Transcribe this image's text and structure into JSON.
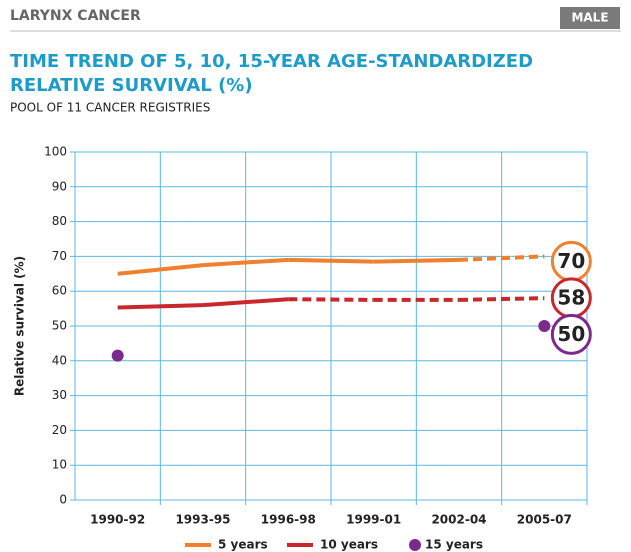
{
  "header": {
    "section": "LARYNX CANCER",
    "sex": "MALE"
  },
  "chart_data": {
    "type": "line",
    "title_lines": [
      "TIME TREND OF 5, 10, 15-YEAR AGE-STANDARDIZED",
      "RELATIVE SURVIVAL (%)"
    ],
    "subtitle": "POOL OF 11 CANCER REGISTRIES",
    "y_label": "Relative survival (%)",
    "categories": [
      "1990-92",
      "1993-95",
      "1996-98",
      "1999-01",
      "2002-04",
      "2005-07"
    ],
    "ylim": [
      0,
      100
    ],
    "yticks": [
      0,
      10,
      20,
      30,
      40,
      50,
      60,
      70,
      80,
      90,
      100
    ],
    "grid": true,
    "series": [
      {
        "name": "5 years",
        "color": "#f07f2e",
        "marker": "line",
        "dashed_from": 4,
        "values": [
          65,
          67.5,
          69,
          68.5,
          69,
          70
        ],
        "value_labels": [
          null,
          null,
          null,
          null,
          null,
          "70"
        ]
      },
      {
        "name": "10 years",
        "color": "#c8282d",
        "marker": "line",
        "dashed_from": 2,
        "values": [
          55.3,
          56,
          57.7,
          57.5,
          57.5,
          58
        ],
        "value_labels": [
          null,
          null,
          null,
          null,
          null,
          "58"
        ]
      },
      {
        "name": "15 years",
        "color": "#7b2a8c",
        "marker": "dot",
        "values": [
          41.5,
          null,
          null,
          null,
          null,
          50
        ],
        "value_labels": [
          null,
          null,
          null,
          null,
          null,
          "50"
        ]
      }
    ]
  }
}
